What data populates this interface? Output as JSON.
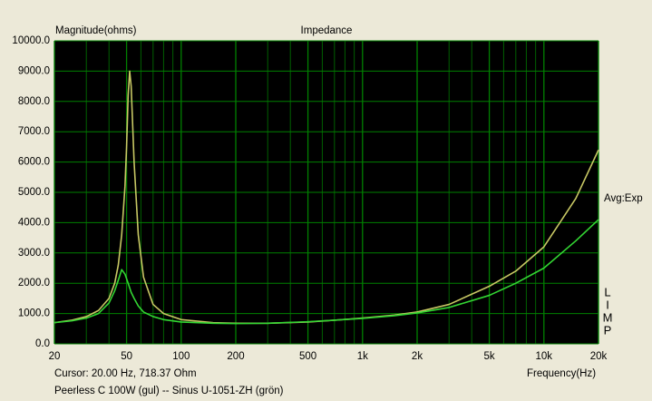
{
  "chart_data": {
    "type": "line",
    "title": "Impedance",
    "ylabel": "Magnitude(ohms)",
    "xlabel": "Frequency(Hz)",
    "cursor": "Cursor: 20.00 Hz, 718.37 Ohm",
    "caption": "Peerless C 100W (gul) -- Sinus U-1051-ZH (grön)",
    "averaging": "Avg:Exp",
    "side_letters": [
      "L",
      "I",
      "M",
      "P"
    ],
    "xscale": "log",
    "grid": true,
    "background": "#000000",
    "grid_color": "#008000",
    "x": [
      20,
      25,
      30,
      35,
      40,
      43,
      45,
      47,
      49,
      50,
      51,
      52,
      53,
      55,
      58,
      62,
      70,
      80,
      100,
      150,
      200,
      300,
      500,
      700,
      1000,
      1500,
      2000,
      3000,
      5000,
      7000,
      10000,
      15000,
      20000
    ],
    "series": [
      {
        "color": "#c8c864",
        "values": [
          700,
          780,
          900,
          1100,
          1500,
          2000,
          2600,
          3600,
          5200,
          6500,
          8200,
          9000,
          8500,
          6000,
          3600,
          2200,
          1300,
          1000,
          800,
          700,
          680,
          680,
          720,
          780,
          850,
          950,
          1050,
          1300,
          1900,
          2400,
          3200,
          4800,
          6400
        ]
      },
      {
        "color": "#33d633",
        "values": [
          700,
          760,
          850,
          1000,
          1350,
          1750,
          2100,
          2450,
          2300,
          2150,
          2000,
          1850,
          1700,
          1500,
          1250,
          1050,
          900,
          800,
          720,
          680,
          670,
          680,
          730,
          780,
          840,
          930,
          1020,
          1200,
          1600,
          2000,
          2500,
          3400,
          4100
        ]
      }
    ],
    "xlim": [
      20,
      20000
    ],
    "xticks": [
      20,
      50,
      100,
      200,
      500,
      {
        "value": 1000,
        "label": "1k"
      },
      {
        "value": 2000,
        "label": "2k"
      },
      {
        "value": 5000,
        "label": "5k"
      },
      {
        "value": 10000,
        "label": "10k"
      },
      {
        "value": 20000,
        "label": "20k"
      }
    ],
    "xminorticks": [
      30,
      40,
      60,
      70,
      80,
      90,
      300,
      400,
      600,
      700,
      800,
      900,
      3000,
      4000,
      6000,
      7000,
      8000,
      9000
    ],
    "ylim": [
      0,
      10000
    ],
    "yticks": [
      {
        "value": 0,
        "label": "0.0"
      },
      {
        "value": 1000,
        "label": "1000.0"
      },
      {
        "value": 2000,
        "label": "2000.0"
      },
      {
        "value": 3000,
        "label": "3000.0"
      },
      {
        "value": 4000,
        "label": "4000.0"
      },
      {
        "value": 5000,
        "label": "5000.0"
      },
      {
        "value": 6000,
        "label": "6000.0"
      },
      {
        "value": 7000,
        "label": "7000.0"
      },
      {
        "value": 8000,
        "label": "8000.0"
      },
      {
        "value": 9000,
        "label": "9000.0"
      },
      {
        "value": 10000,
        "label": "10000.0"
      }
    ]
  }
}
